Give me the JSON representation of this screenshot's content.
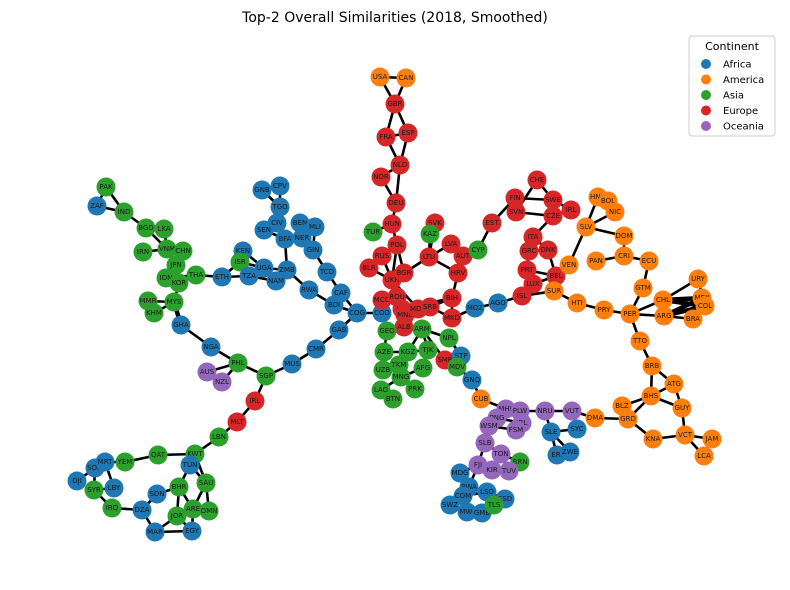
{
  "title": "Top-2 Overall Similarities (2018, Smoothed)",
  "legend": {
    "title": "Continent",
    "placement": "top-right",
    "entries": [
      {
        "label": "Africa",
        "color": "#1f77b4"
      },
      {
        "label": "America",
        "color": "#ff7f0e"
      },
      {
        "label": "Asia",
        "color": "#2ca02c"
      },
      {
        "label": "Europe",
        "color": "#d62728"
      },
      {
        "label": "Oceania",
        "color": "#9467bd"
      }
    ]
  },
  "nodes": [
    {
      "id": "USA",
      "group": "America"
    },
    {
      "id": "CAN",
      "group": "America"
    },
    {
      "id": "GBR",
      "group": "Europe"
    },
    {
      "id": "FRA",
      "group": "Europe"
    },
    {
      "id": "ESP",
      "group": "Europe"
    },
    {
      "id": "NLD",
      "group": "Europe"
    },
    {
      "id": "NOR",
      "group": "Europe"
    },
    {
      "id": "DEU",
      "group": "Europe"
    },
    {
      "id": "HUN",
      "group": "Europe"
    },
    {
      "id": "TUR",
      "group": "Asia"
    },
    {
      "id": "POL",
      "group": "Europe"
    },
    {
      "id": "RUS",
      "group": "Europe"
    },
    {
      "id": "BLR",
      "group": "Europe"
    },
    {
      "id": "UKR",
      "group": "Europe"
    },
    {
      "id": "BGR",
      "group": "Europe"
    },
    {
      "id": "SVK",
      "group": "Europe"
    },
    {
      "id": "KAZ",
      "group": "Asia"
    },
    {
      "id": "LVA",
      "group": "Europe"
    },
    {
      "id": "LTU",
      "group": "Europe"
    },
    {
      "id": "AUT",
      "group": "Europe"
    },
    {
      "id": "HRV",
      "group": "Europe"
    },
    {
      "id": "CYP",
      "group": "Asia"
    },
    {
      "id": "EST",
      "group": "Europe"
    },
    {
      "id": "FIN",
      "group": "Europe"
    },
    {
      "id": "CHE",
      "group": "Europe"
    },
    {
      "id": "SWE",
      "group": "Europe"
    },
    {
      "id": "SVN",
      "group": "Europe"
    },
    {
      "id": "CZE",
      "group": "Europe"
    },
    {
      "id": "IRL",
      "group": "Europe"
    },
    {
      "id": "HND",
      "group": "America"
    },
    {
      "id": "BOL",
      "group": "America"
    },
    {
      "id": "NIC",
      "group": "America"
    },
    {
      "id": "SLV",
      "group": "America"
    },
    {
      "id": "DOM",
      "group": "America"
    },
    {
      "id": "ITA",
      "group": "Europe"
    },
    {
      "id": "GRC",
      "group": "Europe"
    },
    {
      "id": "DNK",
      "group": "Europe"
    },
    {
      "id": "PRT",
      "group": "Europe"
    },
    {
      "id": "LUX",
      "group": "Europe"
    },
    {
      "id": "BEL",
      "group": "Europe"
    },
    {
      "id": "ISL",
      "group": "Europe"
    },
    {
      "id": "VEN",
      "group": "America"
    },
    {
      "id": "PAN",
      "group": "America"
    },
    {
      "id": "CRI",
      "group": "America"
    },
    {
      "id": "ECU",
      "group": "America"
    },
    {
      "id": "SUR",
      "group": "America"
    },
    {
      "id": "HTI",
      "group": "America"
    },
    {
      "id": "PRY",
      "group": "America"
    },
    {
      "id": "PER",
      "group": "America"
    },
    {
      "id": "GTM",
      "group": "America"
    },
    {
      "id": "URY",
      "group": "America"
    },
    {
      "id": "CHL",
      "group": "America"
    },
    {
      "id": "MEX",
      "group": "America"
    },
    {
      "id": "COL",
      "group": "America"
    },
    {
      "id": "ARG",
      "group": "America"
    },
    {
      "id": "BRA",
      "group": "America"
    },
    {
      "id": "TTO",
      "group": "America"
    },
    {
      "id": "BRB",
      "group": "America"
    },
    {
      "id": "ATG",
      "group": "America"
    },
    {
      "id": "BHS",
      "group": "America"
    },
    {
      "id": "GUY",
      "group": "America"
    },
    {
      "id": "BLZ",
      "group": "America"
    },
    {
      "id": "GRD",
      "group": "America"
    },
    {
      "id": "DMA",
      "group": "America"
    },
    {
      "id": "KNA",
      "group": "America"
    },
    {
      "id": "VCT",
      "group": "America"
    },
    {
      "id": "JAM",
      "group": "America"
    },
    {
      "id": "LCA",
      "group": "America"
    },
    {
      "id": "CUB",
      "group": "America"
    },
    {
      "id": "PAK",
      "group": "Asia"
    },
    {
      "id": "ZAF",
      "group": "Africa"
    },
    {
      "id": "IND",
      "group": "Asia"
    },
    {
      "id": "BGD",
      "group": "Asia"
    },
    {
      "id": "LKA",
      "group": "Asia"
    },
    {
      "id": "IRN",
      "group": "Asia"
    },
    {
      "id": "VNM",
      "group": "Asia"
    },
    {
      "id": "CHN",
      "group": "Asia"
    },
    {
      "id": "JPN",
      "group": "Asia"
    },
    {
      "id": "IDN",
      "group": "Asia"
    },
    {
      "id": "THA",
      "group": "Asia"
    },
    {
      "id": "KOR",
      "group": "Asia"
    },
    {
      "id": "MMR",
      "group": "Asia"
    },
    {
      "id": "MYS",
      "group": "Asia"
    },
    {
      "id": "KHM",
      "group": "Asia"
    },
    {
      "id": "GHA",
      "group": "Africa"
    },
    {
      "id": "NGA",
      "group": "Africa"
    },
    {
      "id": "PHL",
      "group": "Asia"
    },
    {
      "id": "AUS",
      "group": "Oceania"
    },
    {
      "id": "NZL",
      "group": "Oceania"
    },
    {
      "id": "SGP",
      "group": "Asia"
    },
    {
      "id": "IRL2",
      "group": "Europe"
    },
    {
      "id": "MLT",
      "group": "Europe"
    },
    {
      "id": "LBN",
      "group": "Asia"
    },
    {
      "id": "MUS",
      "group": "Africa"
    },
    {
      "id": "CMR",
      "group": "Africa"
    },
    {
      "id": "GAB",
      "group": "Africa"
    },
    {
      "id": "ETH",
      "group": "Africa"
    },
    {
      "id": "KEN",
      "group": "Africa"
    },
    {
      "id": "ISR",
      "group": "Asia"
    },
    {
      "id": "TZA",
      "group": "Africa"
    },
    {
      "id": "UGA",
      "group": "Africa"
    },
    {
      "id": "ZMB",
      "group": "Africa"
    },
    {
      "id": "NAM",
      "group": "Africa"
    },
    {
      "id": "GNB",
      "group": "Africa"
    },
    {
      "id": "CPV",
      "group": "Africa"
    },
    {
      "id": "TGO",
      "group": "Africa"
    },
    {
      "id": "CIV",
      "group": "Africa"
    },
    {
      "id": "SEN",
      "group": "Africa"
    },
    {
      "id": "BFA",
      "group": "Africa"
    },
    {
      "id": "BEN",
      "group": "Africa"
    },
    {
      "id": "MLI",
      "group": "Africa"
    },
    {
      "id": "NER",
      "group": "Africa"
    },
    {
      "id": "GIN",
      "group": "Africa"
    },
    {
      "id": "TCD",
      "group": "Africa"
    },
    {
      "id": "RWA",
      "group": "Africa"
    },
    {
      "id": "CAF",
      "group": "Africa"
    },
    {
      "id": "BDI",
      "group": "Africa"
    },
    {
      "id": "COG",
      "group": "Africa"
    },
    {
      "id": "COD",
      "group": "Africa"
    },
    {
      "id": "MCO",
      "group": "Europe"
    },
    {
      "id": "ROU",
      "group": "Europe"
    },
    {
      "id": "LIE",
      "group": "Europe"
    },
    {
      "id": "MNE",
      "group": "Europe"
    },
    {
      "id": "MDA",
      "group": "Europe"
    },
    {
      "id": "SRB",
      "group": "Europe"
    },
    {
      "id": "BIH",
      "group": "Europe"
    },
    {
      "id": "MKD",
      "group": "Europe"
    },
    {
      "id": "ALB",
      "group": "Europe"
    },
    {
      "id": "GEO",
      "group": "Asia"
    },
    {
      "id": "ARM",
      "group": "Asia"
    },
    {
      "id": "NPL",
      "group": "Asia"
    },
    {
      "id": "SMR",
      "group": "Europe"
    },
    {
      "id": "AZE",
      "group": "Asia"
    },
    {
      "id": "KGZ",
      "group": "Asia"
    },
    {
      "id": "TJK",
      "group": "Asia"
    },
    {
      "id": "UZB",
      "group": "Asia"
    },
    {
      "id": "TKM",
      "group": "Asia"
    },
    {
      "id": "MNG",
      "group": "Asia"
    },
    {
      "id": "AFG",
      "group": "Asia"
    },
    {
      "id": "LAO",
      "group": "Asia"
    },
    {
      "id": "BTN",
      "group": "Asia"
    },
    {
      "id": "PRK",
      "group": "Asia"
    },
    {
      "id": "STP",
      "group": "Africa"
    },
    {
      "id": "MDV",
      "group": "Asia"
    },
    {
      "id": "MOZ",
      "group": "Africa"
    },
    {
      "id": "AGO",
      "group": "Africa"
    },
    {
      "id": "GNQ",
      "group": "Africa"
    },
    {
      "id": "MHL",
      "group": "Oceania"
    },
    {
      "id": "PLW",
      "group": "Oceania"
    },
    {
      "id": "NRU",
      "group": "Oceania"
    },
    {
      "id": "VUT",
      "group": "Oceania"
    },
    {
      "id": "PNG",
      "group": "Oceania"
    },
    {
      "id": "WSM",
      "group": "Oceania"
    },
    {
      "id": "KIR2",
      "group": "Oceania"
    },
    {
      "id": "FSM",
      "group": "Oceania"
    },
    {
      "id": "SLE",
      "group": "Africa"
    },
    {
      "id": "SYC",
      "group": "Africa"
    },
    {
      "id": "ERI",
      "group": "Africa"
    },
    {
      "id": "ZWE",
      "group": "Africa"
    },
    {
      "id": "SLB",
      "group": "Oceania"
    },
    {
      "id": "TON",
      "group": "Oceania"
    },
    {
      "id": "BRN",
      "group": "Asia"
    },
    {
      "id": "MDG",
      "group": "Africa"
    },
    {
      "id": "FJI",
      "group": "Oceania"
    },
    {
      "id": "KIR",
      "group": "Oceania"
    },
    {
      "id": "TUV",
      "group": "Oceania"
    },
    {
      "id": "BWA",
      "group": "Africa"
    },
    {
      "id": "COM",
      "group": "Africa"
    },
    {
      "id": "LSO",
      "group": "Africa"
    },
    {
      "id": "SSD",
      "group": "Africa"
    },
    {
      "id": "SWZ",
      "group": "Africa"
    },
    {
      "id": "MWI",
      "group": "Africa"
    },
    {
      "id": "GMB",
      "group": "Africa"
    },
    {
      "id": "TLS",
      "group": "Asia"
    },
    {
      "id": "DJI",
      "group": "Africa"
    },
    {
      "id": "SOM",
      "group": "Africa"
    },
    {
      "id": "MRT",
      "group": "Africa"
    },
    {
      "id": "YEM",
      "group": "Asia"
    },
    {
      "id": "QAT",
      "group": "Asia"
    },
    {
      "id": "KWT",
      "group": "Asia"
    },
    {
      "id": "TUN",
      "group": "Africa"
    },
    {
      "id": "LBY",
      "group": "Africa"
    },
    {
      "id": "SYR",
      "group": "Asia"
    },
    {
      "id": "IRQ",
      "group": "Asia"
    },
    {
      "id": "SDN",
      "group": "Africa"
    },
    {
      "id": "BHR",
      "group": "Asia"
    },
    {
      "id": "SAU",
      "group": "Asia"
    },
    {
      "id": "DZA",
      "group": "Africa"
    },
    {
      "id": "ARE",
      "group": "Asia"
    },
    {
      "id": "OMN",
      "group": "Asia"
    },
    {
      "id": "JOR",
      "group": "Asia"
    },
    {
      "id": "MAR",
      "group": "Africa"
    },
    {
      "id": "EGY",
      "group": "Africa"
    }
  ],
  "labels": {
    "IRL2": "IRL",
    "KIR2": "IRL"
  }
}
